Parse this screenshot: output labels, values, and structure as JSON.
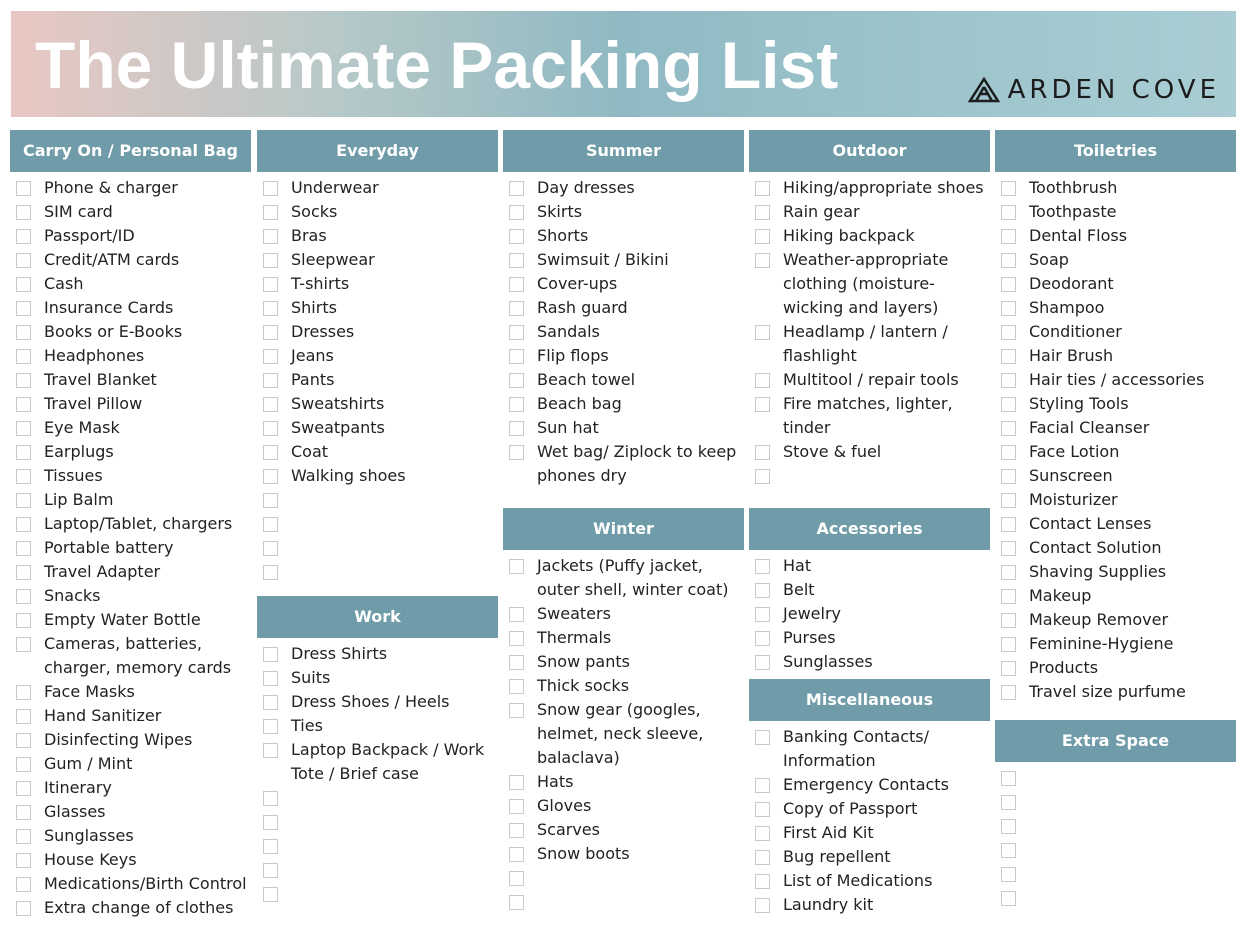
{
  "header": {
    "title": "The Ultimate Packing List",
    "brand": "ARDEN COVE"
  },
  "columns": [
    {
      "sections": [
        {
          "title": "Carry On / Personal Bag",
          "items": [
            "Phone & charger",
            "SIM card",
            "Passport/ID",
            "Credit/ATM cards",
            "Cash",
            "Insurance Cards",
            "Books or E-Books",
            "Headphones",
            "Travel Blanket",
            "Travel Pillow",
            "Eye Mask",
            "Earplugs",
            "Tissues",
            "Lip Balm",
            "Laptop/Tablet, chargers",
            "Portable battery",
            "Travel Adapter",
            "Snacks",
            "Empty Water Bottle",
            "Cameras, batteries, charger, memory cards",
            "Face Masks",
            "Hand Sanitizer",
            "Disinfecting Wipes",
            "Gum / Mint",
            "Itinerary",
            "Glasses",
            "Sunglasses",
            "House Keys",
            "Medications/Birth Control",
            "Extra change of clothes"
          ]
        }
      ]
    },
    {
      "sections": [
        {
          "title": "Everyday",
          "items": [
            "Underwear",
            "Socks",
            "Bras",
            "Sleepwear",
            "T-shirts",
            "Shirts",
            "Dresses",
            "Jeans",
            "Pants",
            "Sweatshirts",
            "Sweatpants",
            "Coat",
            "Walking shoes"
          ]
        },
        {
          "title": "Work",
          "items": [
            "Dress Shirts",
            "Suits",
            "Dress Shoes / Heels",
            "Ties",
            "Laptop Backpack / Work Tote / Brief case"
          ]
        }
      ]
    },
    {
      "sections": [
        {
          "title": "Summer",
          "items": [
            "Day dresses",
            "Skirts",
            "Shorts",
            "Swimsuit / Bikini",
            "Cover-ups",
            "Rash guard",
            "Sandals",
            "Flip flops",
            "Beach towel",
            "Beach bag",
            "Sun hat",
            "Wet bag/ Ziplock to keep phones dry"
          ]
        },
        {
          "title": "Winter",
          "items": [
            "Jackets (Puffy jacket, outer shell, winter coat)",
            "Sweaters",
            "Thermals",
            "Snow pants",
            "Thick socks",
            "Snow gear (googles, helmet, neck sleeve, balaclava)",
            "Hats",
            "Gloves",
            "Scarves",
            "Snow boots"
          ]
        }
      ]
    },
    {
      "sections": [
        {
          "title": "Outdoor",
          "items": [
            "Hiking/appropriate shoes",
            "Rain gear",
            "Hiking backpack",
            "Weather-appropriate clothing (moisture-wicking and layers)",
            "Headlamp / lantern / flashlight",
            "Multitool / repair tools",
            "Fire matches, lighter, tinder",
            "Stove & fuel"
          ]
        },
        {
          "title": "Accessories",
          "items": [
            "Hat",
            "Belt",
            "Jewelry",
            "Purses",
            "Sunglasses"
          ]
        },
        {
          "title": "Miscellaneous",
          "items": [
            "Banking Contacts/ Information",
            "Emergency Contacts",
            "Copy of Passport",
            "First Aid Kit",
            "Bug repellent",
            "List of Medications",
            "Laundry kit"
          ]
        }
      ]
    },
    {
      "sections": [
        {
          "title": "Toiletries",
          "items": [
            "Toothbrush",
            "Toothpaste",
            "Dental Floss",
            "Soap",
            "Deodorant",
            "Shampoo",
            "Conditioner",
            "Hair Brush",
            "Hair ties / accessories",
            "Styling Tools",
            "Facial Cleanser",
            "Face Lotion",
            "Sunscreen",
            "Moisturizer",
            "Contact Lenses",
            "Contact Solution",
            "Shaving Supplies",
            "Makeup",
            "Makeup Remover",
            "Feminine-Hygiene",
            "Products",
            "Travel size purfume"
          ]
        },
        {
          "title": "Extra Space",
          "items": []
        }
      ]
    }
  ]
}
